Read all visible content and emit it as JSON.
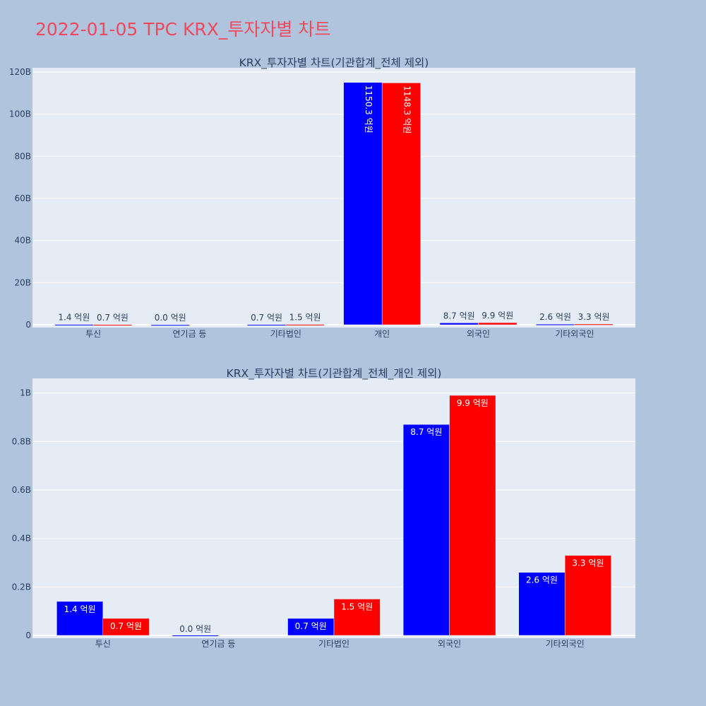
{
  "title": "2022-01-05 TPC KRX_투자자별 차트",
  "colors": {
    "background": "#b0c4de",
    "plot_bg": "#e5ecf6",
    "title": "#ef4a5c",
    "series_a": "#0000ff",
    "series_b": "#ff0000"
  },
  "chart_data": [
    {
      "type": "bar",
      "title": "KRX_투자자별 차트(기관합계_전체 제외)",
      "categories": [
        "투신",
        "연기금 등",
        "기타법인",
        "개인",
        "외국인",
        "기타외국인"
      ],
      "ylim": [
        0,
        122000000000
      ],
      "yticks": [
        0,
        20000000000,
        40000000000,
        60000000000,
        80000000000,
        100000000000,
        120000000000
      ],
      "ytick_labels": [
        "0",
        "20B",
        "40B",
        "60B",
        "80B",
        "100B",
        "120B"
      ],
      "grid": true,
      "label_rotation": 90,
      "series": [
        {
          "color": "#0000ff",
          "values": [
            140000000,
            500000,
            70000000,
            115030000000,
            870000000,
            260000000
          ],
          "labels": [
            "1.4 억원",
            "0.0 억원",
            "0.7 억원",
            "1150.3 억원",
            "8.7 억원",
            "2.6 억원"
          ]
        },
        {
          "color": "#ff0000",
          "values": [
            70000000,
            null,
            150000000,
            114830000000,
            990000000,
            330000000
          ],
          "labels": [
            "0.7 억원",
            "",
            "1.5 억원",
            "1148.3 억원",
            "9.9 억원",
            "3.3 억원"
          ]
        }
      ]
    },
    {
      "type": "bar",
      "title": "KRX_투자자별 차트(기관합계_전체_개인 제외)",
      "categories": [
        "투신",
        "연기금 등",
        "기타법인",
        "외국인",
        "기타외국인"
      ],
      "ylim": [
        0,
        1060000000
      ],
      "yticks": [
        0,
        200000000,
        400000000,
        600000000,
        800000000,
        1000000000
      ],
      "ytick_labels": [
        "0",
        "0.2B",
        "0.4B",
        "0.6B",
        "0.8B",
        "1B"
      ],
      "grid": true,
      "label_rotation": 0,
      "series": [
        {
          "color": "#0000ff",
          "values": [
            140000000,
            500000,
            70000000,
            870000000,
            260000000
          ],
          "labels": [
            "1.4 억원",
            "0.0 억원",
            "0.7 억원",
            "8.7 억원",
            "2.6 억원"
          ]
        },
        {
          "color": "#ff0000",
          "values": [
            70000000,
            null,
            150000000,
            990000000,
            330000000
          ],
          "labels": [
            "0.7 억원",
            "",
            "1.5 억원",
            "9.9 억원",
            "3.3 억원"
          ]
        }
      ]
    }
  ]
}
